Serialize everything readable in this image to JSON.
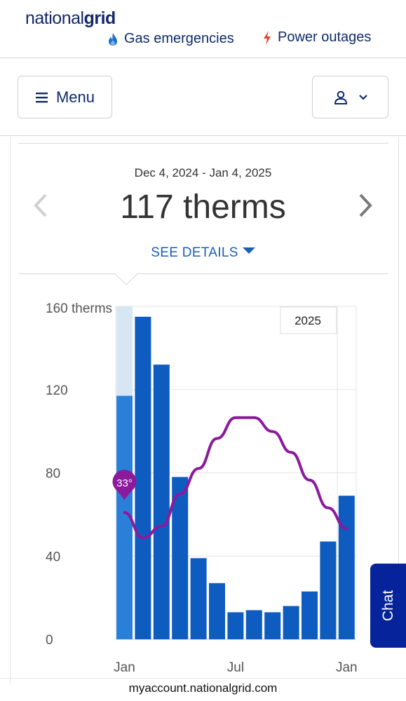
{
  "header": {
    "logo_part1": "national",
    "logo_part2": "grid",
    "gas_link": "Gas emergencies",
    "power_link": "Power outages",
    "menu_label": "Menu"
  },
  "usage": {
    "date_range": "Dec 4, 2024 - Jan 4, 2025",
    "amount": "117 therms",
    "details_label": "SEE DETAILS"
  },
  "chat_label": "Chat",
  "footer_url": "myaccount.nationalgrid.com",
  "colors": {
    "brand_navy": "#13296b",
    "bar_blue": "#0f5cc0",
    "bar_current": "#2a80d8",
    "bar_highlight": "#d7e6f3",
    "temp_line": "#8b1a9c",
    "chat_bg": "#07239b"
  },
  "chart_data": {
    "type": "bar",
    "unit_label": "160 therms",
    "yticks": [
      "0",
      "40",
      "80",
      "120"
    ],
    "ylim": [
      0,
      160
    ],
    "xticks": [
      "Jan",
      "Jul",
      "Jan"
    ],
    "year_label": "2025",
    "temperature_badge": "33°",
    "series": [
      {
        "values": [
          117,
          155,
          132,
          78,
          39,
          27,
          13,
          14,
          13,
          16,
          23,
          47,
          69
        ]
      }
    ],
    "highlight_index": 0,
    "highlight_range": [
      117,
      160
    ],
    "temperature_line": [
      33,
      22,
      27,
      41,
      52,
      65,
      74,
      74,
      68,
      59,
      47,
      35,
      26
    ]
  }
}
